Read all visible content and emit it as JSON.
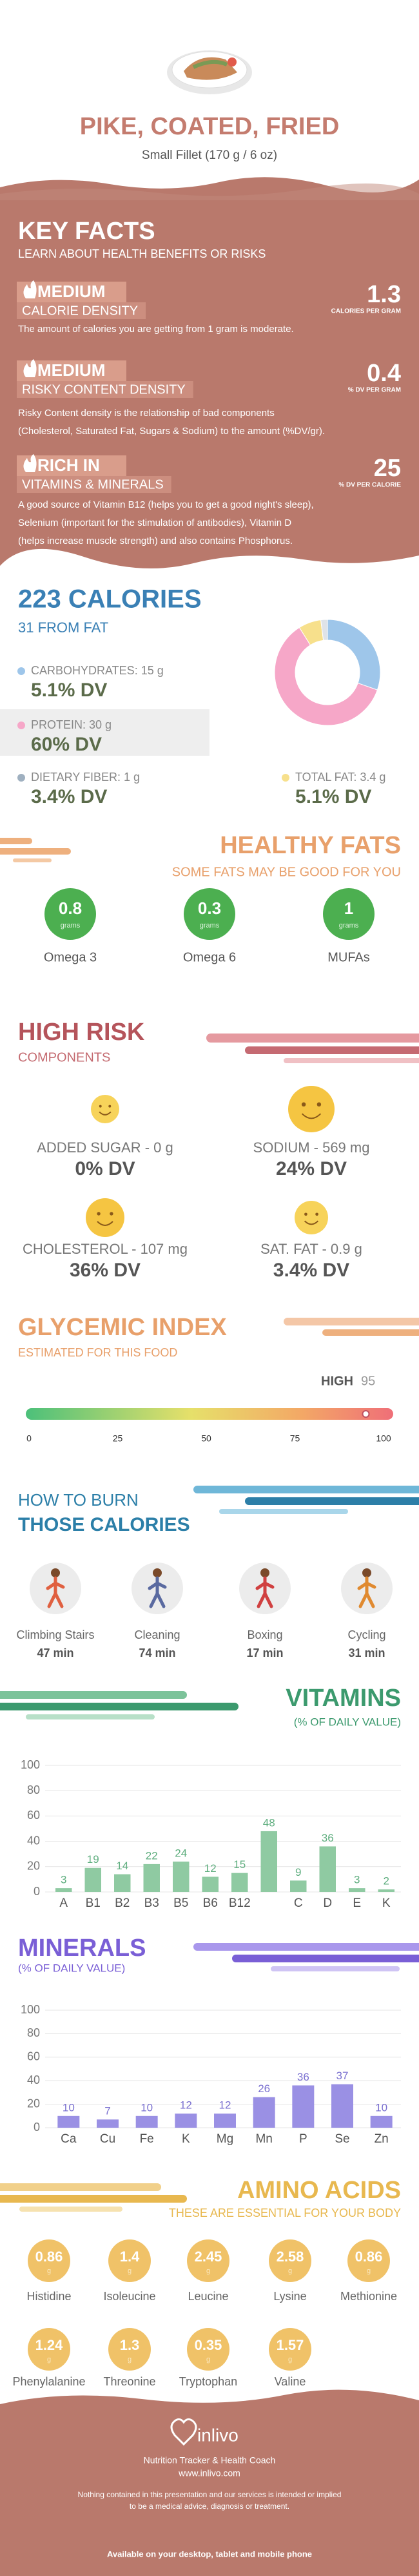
{
  "header": {
    "title": "PIKE, COATED, FRIED",
    "subtitle": "Small Fillet (170 g / 6 oz)"
  },
  "key_facts": {
    "title": "KEY FACTS",
    "subtitle": "LEARN ABOUT HEALTH BENEFITS OR RISKS",
    "items": [
      {
        "level": "MEDIUM",
        "name": "CALORIE DENSITY",
        "value": "1.3",
        "unit": "CALORIES PER GRAM",
        "text": [
          "The amount of calories you are getting from 1 gram is moderate."
        ]
      },
      {
        "level": "MEDIUM",
        "name": "RISKY CONTENT DENSITY",
        "value": "0.4",
        "unit": "% DV PER GRAM",
        "text": [
          "Risky Content density is the relationship of bad components",
          "(Cholesterol, Saturated Fat, Sugars & Sodium) to the amount (%DV/gr)."
        ]
      },
      {
        "level": "RICH IN",
        "name": "VITAMINS & MINERALS",
        "value": "25",
        "unit": "% DV PER CALORIE",
        "text": [
          "A good source of Vitamin B12 (helps you to get a good night's sleep),",
          "Selenium (important for the stimulation of antibodies), Vitamin D",
          "(helps increase muscle strength) and also contains Phosphorus."
        ]
      }
    ]
  },
  "calories": {
    "title": "223 CALORIES",
    "subtitle": "31 FROM FAT",
    "nutrients": [
      {
        "label": "CARBOHYDRATES: 15 g",
        "grams": 15,
        "dv": "5.1% DV",
        "color": "#9ec6ea"
      },
      {
        "label": "PROTEIN: 30 g",
        "grams": 30,
        "dv": "60% DV",
        "color": "#f6a7c8"
      },
      {
        "label": "DIETARY FIBER: 1 g",
        "grams": 1,
        "dv": "3.4% DV",
        "color": "#dfe3e8"
      },
      {
        "label": "TOTAL FAT: 3.4 g",
        "grams": 3.4,
        "dv": "5.1% DV",
        "color": "#f7e08c"
      }
    ]
  },
  "healthy_fats": {
    "title": "HEALTHY FATS",
    "subtitle": "SOME FATS MAY BE GOOD FOR YOU",
    "items": [
      {
        "value": "0.8",
        "unit": "grams",
        "name": "Omega 3"
      },
      {
        "value": "0.3",
        "unit": "grams",
        "name": "Omega 6"
      },
      {
        "value": "1",
        "unit": "grams",
        "name": "MUFAs"
      }
    ]
  },
  "high_risk": {
    "title": "HIGH RISK",
    "subtitle": "COMPONENTS",
    "items": [
      {
        "label": "ADDED SUGAR - 0 g",
        "dv": "0% DV"
      },
      {
        "label": "SODIUM - 569 mg",
        "dv": "24% DV"
      },
      {
        "label": "CHOLESTEROL - 107 mg",
        "dv": "36% DV"
      },
      {
        "label": "SAT. FAT - 0.9 g",
        "dv": "3.4% DV"
      }
    ]
  },
  "glycemic": {
    "title": "GLYCEMIC INDEX",
    "subtitle": "ESTIMATED FOR THIS FOOD",
    "level": "HIGH",
    "value": 95,
    "xlim": [
      0,
      100
    ],
    "xticks": [
      0,
      25,
      50,
      75,
      100
    ]
  },
  "burn": {
    "title": [
      "HOW TO BURN",
      "THOSE CALORIES"
    ],
    "activities": [
      {
        "name": "Climbing Stairs",
        "time": "47 min"
      },
      {
        "name": "Cleaning",
        "time": "74 min"
      },
      {
        "name": "Boxing",
        "time": "17 min"
      },
      {
        "name": "Cycling",
        "time": "31 min"
      }
    ]
  },
  "vitamins": {
    "title": "VITAMINS",
    "subtitle": "(% OF DAILY VALUE)",
    "categories": [
      "A",
      "B1",
      "B2",
      "B3",
      "B5",
      "B6",
      "B12",
      null,
      "C",
      "D",
      "E",
      "K"
    ],
    "values": [
      3,
      19,
      14,
      22,
      24,
      12,
      15,
      48,
      9,
      36,
      3,
      2
    ],
    "ylim": [
      0,
      100
    ],
    "yticks": [
      0,
      20,
      40,
      60,
      80,
      100
    ],
    "color": "#8fcaa2"
  },
  "minerals": {
    "title": "MINERALS",
    "subtitle": "(% OF DAILY VALUE)",
    "categories": [
      "Ca",
      "Cu",
      "Fe",
      "K",
      "Mg",
      "Mn",
      "P",
      "Se",
      "Zn"
    ],
    "values": [
      10,
      7,
      10,
      12,
      12,
      26,
      36,
      37,
      10
    ],
    "ylim": [
      0,
      100
    ],
    "yticks": [
      0,
      20,
      40,
      60,
      80,
      100
    ],
    "color": "#9a90e4"
  },
  "amino_acids": {
    "title": "AMINO ACIDS",
    "subtitle": "THESE ARE ESSENTIAL FOR YOUR BODY",
    "items": [
      {
        "value": "0.86",
        "unit": "g",
        "name": "Histidine"
      },
      {
        "value": "1.4",
        "unit": "g",
        "name": "Isoleucine"
      },
      {
        "value": "2.45",
        "unit": "g",
        "name": "Leucine"
      },
      {
        "value": "2.58",
        "unit": "g",
        "name": "Lysine"
      },
      {
        "value": "0.86",
        "unit": "g",
        "name": "Methionine"
      },
      {
        "value": "1.24",
        "unit": "g",
        "name": "Phenylalanine"
      },
      {
        "value": "1.3",
        "unit": "g",
        "name": "Threonine"
      },
      {
        "value": "0.35",
        "unit": "g",
        "name": "Tryptophan"
      },
      {
        "value": "1.57",
        "unit": "g",
        "name": "Valine"
      }
    ]
  },
  "footer": {
    "brand": "inlivo",
    "tagline": "Nutrition Tracker & Health Coach",
    "url": "www.inlivo.com",
    "disclaimer": [
      "Nothing contained in this presentation and our services is intended or implied",
      "to be a medical advice, diagnosis or treatment."
    ],
    "availability": "Available on your desktop, tablet and mobile phone"
  }
}
